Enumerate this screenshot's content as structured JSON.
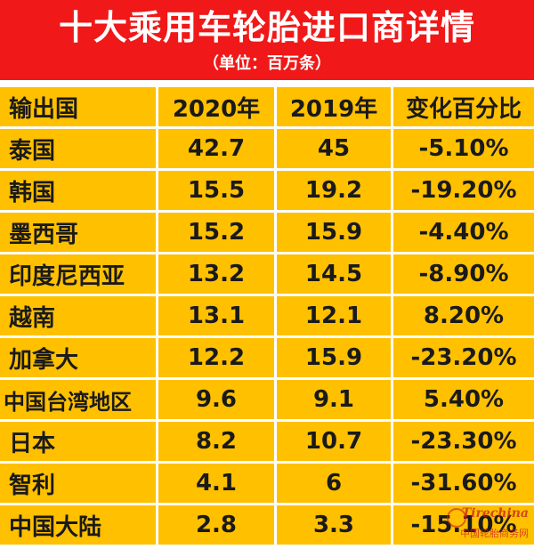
{
  "header": {
    "title": "十大乘用车轮胎进口商详情",
    "subtitle": "（单位：百万条）"
  },
  "table": {
    "columns": [
      "输出国",
      "2020年",
      "2019年",
      "变化百分比"
    ],
    "rows": [
      {
        "country": "泰国",
        "y2020": "42.7",
        "y2019": "45",
        "change": "-5.10%"
      },
      {
        "country": "韩国",
        "y2020": "15.5",
        "y2019": "19.2",
        "change": "-19.20%"
      },
      {
        "country": "墨西哥",
        "y2020": "15.2",
        "y2019": "15.9",
        "change": "-4.40%"
      },
      {
        "country": "印度尼西亚",
        "y2020": "13.2",
        "y2019": "14.5",
        "change": "-8.90%"
      },
      {
        "country": "越南",
        "y2020": "13.1",
        "y2019": "12.1",
        "change": "8.20%"
      },
      {
        "country": "加拿大",
        "y2020": "12.2",
        "y2019": "15.9",
        "change": "-23.20%"
      },
      {
        "country": "中国台湾地区",
        "y2020": "9.6",
        "y2019": "9.1",
        "change": "5.40%"
      },
      {
        "country": "日本",
        "y2020": "8.2",
        "y2019": "10.7",
        "change": "-23.30%"
      },
      {
        "country": "智利",
        "y2020": "4.1",
        "y2019": "6",
        "change": "-31.60%"
      },
      {
        "country": "中国大陆",
        "y2020": "2.8",
        "y2019": "3.3",
        "change": "-15.10%"
      }
    ]
  },
  "watermark": {
    "logo": "Tirechina",
    "text": "中国轮胎商务网"
  },
  "colors": {
    "title_bg": "#f01818",
    "cell_bg": "#ffc000",
    "grid": "#ffffff"
  }
}
